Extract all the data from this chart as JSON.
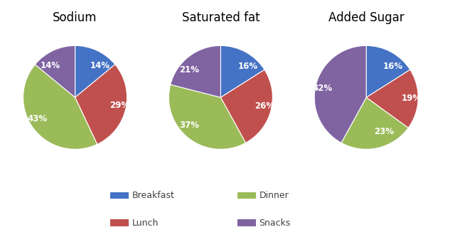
{
  "charts": [
    {
      "title": "Sodium",
      "values": [
        14,
        29,
        43,
        14
      ],
      "labels": [
        "14%",
        "29%",
        "43%",
        "14%"
      ],
      "startangle": 90
    },
    {
      "title": "Saturated fat",
      "values": [
        16,
        26,
        37,
        21
      ],
      "labels": [
        "16%",
        "26%",
        "37%",
        "21%"
      ],
      "startangle": 90
    },
    {
      "title": "Added Sugar",
      "values": [
        16,
        19,
        23,
        42
      ],
      "labels": [
        "16%",
        "19%",
        "23%",
        "42%"
      ],
      "startangle": 90
    }
  ],
  "colors": [
    "#4472C4",
    "#C0504D",
    "#9BBB59",
    "#8064A2"
  ],
  "legend_labels": [
    "Breakfast",
    "Lunch",
    "Dinner",
    "Snacks"
  ],
  "title_fontsize": 12,
  "label_fontsize": 8.5
}
